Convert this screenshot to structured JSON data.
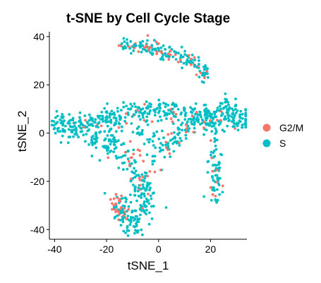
{
  "chart_data": {
    "type": "scatter",
    "title": "t-SNE by Cell Cycle Stage",
    "xlabel": "tSNE_1",
    "ylabel": "tSNE_2",
    "xlim": [
      -42,
      34
    ],
    "ylim": [
      -44,
      42
    ],
    "x_ticks": [
      -40,
      -20,
      0,
      20
    ],
    "y_ticks": [
      -40,
      -20,
      0,
      20,
      40
    ],
    "grid": false,
    "legend_position": "right",
    "series": [
      {
        "name": "G2/M",
        "color": "#F8766D",
        "clusters": [
          {
            "points": [
              [
                -14.0,
                36.0
              ],
              [
                -10.0,
                36.5
              ],
              [
                -6.0,
                36.0
              ],
              [
                -2.0,
                35.0
              ],
              [
                2.0,
                33.5
              ],
              [
                6.0,
                33.0
              ],
              [
                10.0,
                31.5
              ],
              [
                14.0,
                29.0
              ],
              [
                17.0,
                25.0
              ],
              [
                19.0,
                21.0
              ]
            ],
            "count": 38,
            "spread": 1.5
          },
          {
            "points": [
              [
                -30.0,
                5.0
              ],
              [
                -22.0,
                5.0
              ],
              [
                -14.0,
                6.0
              ],
              [
                -8.0,
                8.0
              ],
              [
                -2.0,
                8.0
              ],
              [
                6.0,
                8.0
              ],
              [
                14.0,
                7.0
              ],
              [
                22.0,
                5.0
              ],
              [
                30.0,
                4.0
              ]
            ],
            "count": 28,
            "spread": 2.0
          },
          {
            "points": [
              [
                -20.0,
                -4.0
              ],
              [
                -14.0,
                -9.0
              ],
              [
                -10.0,
                -14.0
              ],
              [
                -6.0,
                -20.0
              ],
              [
                -4.0,
                -26.0
              ],
              [
                -6.0,
                -32.0
              ],
              [
                -9.0,
                -38.0
              ]
            ],
            "count": 16,
            "spread": 2.0
          },
          {
            "points": [
              [
                -17.0,
                -27.0
              ],
              [
                -15.0,
                -31.0
              ],
              [
                -13.0,
                -35.0
              ]
            ],
            "count": 26,
            "spread": 1.6
          },
          {
            "points": [
              [
                -2.0,
                -8.0
              ],
              [
                2.0,
                -5.0
              ],
              [
                6.0,
                -2.0
              ],
              [
                10.0,
                1.0
              ],
              [
                14.0,
                4.0
              ]
            ],
            "count": 12,
            "spread": 2.0
          },
          {
            "points": [
              [
                20.0,
                -3.0
              ],
              [
                21.0,
                -10.0
              ],
              [
                22.0,
                -16.0
              ],
              [
                23.0,
                -22.0
              ],
              [
                21.0,
                -26.0
              ]
            ],
            "count": 10,
            "spread": 1.5
          },
          {
            "points": [
              [
                -6.0,
                -11.0
              ],
              [
                -10.0,
                -2.0
              ],
              [
                0.0,
                -20.0
              ]
            ],
            "count": 8,
            "spread": 1.5
          }
        ]
      },
      {
        "name": "S",
        "color": "#00BFC4",
        "clusters": [
          {
            "points": [
              [
                -14.0,
                36.0
              ],
              [
                -10.0,
                36.5
              ],
              [
                -6.0,
                36.0
              ],
              [
                -2.0,
                35.0
              ],
              [
                2.0,
                33.5
              ],
              [
                6.0,
                33.0
              ],
              [
                10.0,
                31.5
              ],
              [
                14.0,
                29.0
              ],
              [
                17.0,
                25.0
              ],
              [
                19.0,
                21.0
              ]
            ],
            "count": 115,
            "spread": 1.6
          },
          {
            "points": [
              [
                -41.0,
                4.0
              ],
              [
                -36.0,
                3.0
              ],
              [
                -31.0,
                3.0
              ],
              [
                -26.0,
                5.0
              ],
              [
                -21.0,
                6.0
              ],
              [
                -16.0,
                7.0
              ],
              [
                -10.0,
                8.0
              ],
              [
                -4.0,
                9.0
              ],
              [
                2.0,
                9.0
              ],
              [
                8.0,
                9.0
              ],
              [
                14.0,
                8.0
              ],
              [
                20.0,
                8.0
              ],
              [
                26.0,
                6.0
              ],
              [
                31.0,
                3.0
              ],
              [
                34.0,
                7.0
              ]
            ],
            "count": 300,
            "spread": 2.3
          },
          {
            "points": [
              [
                -34.0,
                1.0
              ],
              [
                -28.0,
                -1.0
              ],
              [
                -24.0,
                -4.0
              ],
              [
                -20.0,
                -6.0
              ],
              [
                -16.0,
                -6.0
              ]
            ],
            "count": 35,
            "spread": 2.0
          },
          {
            "points": [
              [
                -20.0,
                -1.0
              ],
              [
                -16.0,
                -7.0
              ],
              [
                -12.0,
                -12.0
              ],
              [
                -8.0,
                -18.0
              ],
              [
                -5.0,
                -24.0
              ],
              [
                -6.0,
                -30.0
              ],
              [
                -8.0,
                -35.0
              ],
              [
                -10.0,
                -40.0
              ]
            ],
            "count": 150,
            "spread": 2.6
          },
          {
            "points": [
              [
                -16.0,
                -27.0
              ],
              [
                -14.0,
                -32.0
              ],
              [
                -12.0,
                -36.0
              ]
            ],
            "count": 35,
            "spread": 1.8
          },
          {
            "points": [
              [
                -2.0,
                -10.0
              ],
              [
                2.0,
                -6.0
              ],
              [
                6.0,
                -3.0
              ],
              [
                10.0,
                0.0
              ],
              [
                14.0,
                4.0
              ],
              [
                18.0,
                8.0
              ]
            ],
            "count": 65,
            "spread": 2.0
          },
          {
            "points": [
              [
                16.0,
                10.0
              ],
              [
                20.0,
                6.0
              ],
              [
                22.0,
                0.0
              ],
              [
                22.0,
                -6.0
              ],
              [
                22.0,
                -12.0
              ],
              [
                22.0,
                -18.0
              ],
              [
                22.0,
                -24.0
              ],
              [
                22.0,
                -28.0
              ]
            ],
            "count": 70,
            "spread": 1.6
          },
          {
            "points": [
              [
                24.0,
                12.0
              ],
              [
                26.0,
                14.0
              ],
              [
                28.0,
                10.0
              ],
              [
                30.0,
                6.0
              ]
            ],
            "count": 25,
            "spread": 1.4
          },
          {
            "points": [
              [
                -4.0,
                4.0
              ],
              [
                -8.0,
                0.0
              ],
              [
                -2.0,
                -2.0
              ],
              [
                4.0,
                3.0
              ],
              [
                0.0,
                -14.0
              ]
            ],
            "count": 20,
            "spread": 1.8
          }
        ]
      }
    ]
  }
}
